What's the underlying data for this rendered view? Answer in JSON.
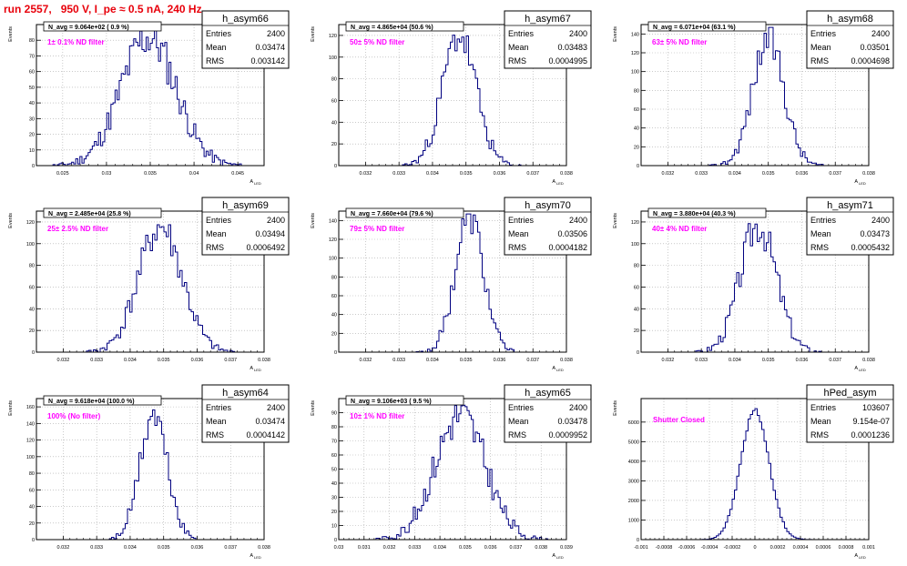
{
  "title": "run 2557,   950 V, I_pe ≈ 0.5 nA, 240 Hz",
  "colors": {
    "title": "#e8000b",
    "annotation": "#ff00ff",
    "histogram": "#000080",
    "grid": "#aaaaaa",
    "frame": "#000000"
  },
  "stats_labels": {
    "entries": "Entries",
    "mean": "Mean",
    "rms": "RMS"
  },
  "axis": {
    "ylabel": "Events",
    "xlabel": "A",
    "xlabel_sub": "LED"
  },
  "chart_data": [
    {
      "type": "histogram",
      "name": "h_asym66",
      "navg": "N_avg = 9.064e+02 ( 0.9 %)",
      "note": "1± 0.1% ND filter",
      "entries": "2400",
      "mean": "0.03474",
      "rms": "0.003142",
      "xlim": [
        0.022,
        0.048
      ],
      "ylim": [
        0,
        90
      ],
      "xticks": [
        0.025,
        0.03,
        0.035,
        0.04,
        0.045
      ],
      "xtick_labels": [
        "0.025",
        "0.03",
        "0.035",
        "0.04",
        "0.045"
      ],
      "yticks": [
        0,
        10,
        20,
        30,
        40,
        50,
        60,
        70,
        80
      ],
      "ytick_labels": [
        "0",
        "10",
        "20",
        "30",
        "40",
        "50",
        "60",
        "70",
        "80"
      ],
      "peak_x": 0.0348,
      "sigma": 0.00314,
      "peak_y": 82,
      "nbins": 110,
      "seed": 11
    },
    {
      "type": "histogram",
      "name": "h_asym67",
      "navg": "N_avg = 4.865e+04 (50.6 %)",
      "note": "50± 5% ND filter",
      "entries": "2400",
      "mean": "0.03483",
      "rms": "0.0004995",
      "xlim": [
        0.0312,
        0.038
      ],
      "ylim": [
        0,
        130
      ],
      "xticks": [
        0.032,
        0.033,
        0.034,
        0.035,
        0.036,
        0.037,
        0.038
      ],
      "xtick_labels": [
        "0.032",
        "0.033",
        "0.034",
        "0.035",
        "0.036",
        "0.037",
        "0.038"
      ],
      "yticks": [
        0,
        20,
        40,
        60,
        80,
        100,
        120
      ],
      "ytick_labels": [
        "0",
        "20",
        "40",
        "60",
        "80",
        "100",
        "120"
      ],
      "peak_x": 0.0348,
      "sigma": 0.0005,
      "peak_y": 120,
      "nbins": 100,
      "seed": 23
    },
    {
      "type": "histogram",
      "name": "h_asym68",
      "navg": "N_avg = 6.071e+04 (63.1 %)",
      "note": "63± 5% ND filter",
      "entries": "2400",
      "mean": "0.03501",
      "rms": "0.0004698",
      "xlim": [
        0.0312,
        0.038
      ],
      "ylim": [
        0,
        150
      ],
      "xticks": [
        0.032,
        0.033,
        0.034,
        0.035,
        0.036,
        0.037,
        0.038
      ],
      "xtick_labels": [
        "0.032",
        "0.033",
        "0.034",
        "0.035",
        "0.036",
        "0.037",
        "0.038"
      ],
      "yticks": [
        0,
        20,
        40,
        60,
        80,
        100,
        120,
        140
      ],
      "ytick_labels": [
        "0",
        "20",
        "40",
        "60",
        "80",
        "100",
        "120",
        "140"
      ],
      "peak_x": 0.035,
      "sigma": 0.00047,
      "peak_y": 135,
      "nbins": 100,
      "seed": 37
    },
    {
      "type": "histogram",
      "name": "h_asym69",
      "navg": "N_avg = 2.485e+04 (25.8 %)",
      "note": "25± 2.5% ND filter",
      "entries": "2400",
      "mean": "0.03494",
      "rms": "0.0006492",
      "xlim": [
        0.0312,
        0.038
      ],
      "ylim": [
        0,
        130
      ],
      "xticks": [
        0.032,
        0.033,
        0.034,
        0.035,
        0.036,
        0.037,
        0.038
      ],
      "xtick_labels": [
        "0.032",
        "0.033",
        "0.034",
        "0.035",
        "0.036",
        "0.037",
        "0.038"
      ],
      "yticks": [
        0,
        20,
        40,
        60,
        80,
        100,
        120
      ],
      "ytick_labels": [
        "0",
        "20",
        "40",
        "60",
        "80",
        "100",
        "120"
      ],
      "peak_x": 0.0349,
      "sigma": 0.00065,
      "peak_y": 115,
      "nbins": 100,
      "seed": 41
    },
    {
      "type": "histogram",
      "name": "h_asym70",
      "navg": "N_avg = 7.660e+04 (79.6 %)",
      "note": "79± 5% ND filter",
      "entries": "2400",
      "mean": "0.03506",
      "rms": "0.0004182",
      "xlim": [
        0.0312,
        0.038
      ],
      "ylim": [
        0,
        150
      ],
      "xticks": [
        0.032,
        0.033,
        0.034,
        0.035,
        0.036,
        0.037,
        0.038
      ],
      "xtick_labels": [
        "0.032",
        "0.033",
        "0.034",
        "0.035",
        "0.036",
        "0.037",
        "0.038"
      ],
      "yticks": [
        0,
        20,
        40,
        60,
        80,
        100,
        120,
        140
      ],
      "ytick_labels": [
        "0",
        "20",
        "40",
        "60",
        "80",
        "100",
        "120",
        "140"
      ],
      "peak_x": 0.0351,
      "sigma": 0.00042,
      "peak_y": 145,
      "nbins": 100,
      "seed": 53
    },
    {
      "type": "histogram",
      "name": "h_asym71",
      "navg": "N_avg = 3.880e+04 (40.3 %)",
      "note": "40± 4% ND filter",
      "entries": "2400",
      "mean": "0.03473",
      "rms": "0.0005432",
      "xlim": [
        0.0312,
        0.038
      ],
      "ylim": [
        0,
        130
      ],
      "xticks": [
        0.032,
        0.033,
        0.034,
        0.035,
        0.036,
        0.037,
        0.038
      ],
      "xtick_labels": [
        "0.032",
        "0.033",
        "0.034",
        "0.035",
        "0.036",
        "0.037",
        "0.038"
      ],
      "yticks": [
        0,
        20,
        40,
        60,
        80,
        100,
        120
      ],
      "ytick_labels": [
        "0",
        "20",
        "40",
        "60",
        "80",
        "100",
        "120"
      ],
      "peak_x": 0.0347,
      "sigma": 0.00054,
      "peak_y": 118,
      "nbins": 100,
      "seed": 67
    },
    {
      "type": "histogram",
      "name": "h_asym64",
      "navg": "N_avg = 9.618e+04 (100.0 %)",
      "note": "100% (No filter)",
      "entries": "2400",
      "mean": "0.03474",
      "rms": "0.0004142",
      "xlim": [
        0.0312,
        0.038
      ],
      "ylim": [
        0,
        170
      ],
      "xticks": [
        0.032,
        0.033,
        0.034,
        0.035,
        0.036,
        0.037,
        0.038
      ],
      "xtick_labels": [
        "0.032",
        "0.033",
        "0.034",
        "0.035",
        "0.036",
        "0.037",
        "0.038"
      ],
      "yticks": [
        0,
        20,
        40,
        60,
        80,
        100,
        120,
        140,
        160
      ],
      "ytick_labels": [
        "0",
        "20",
        "40",
        "60",
        "80",
        "100",
        "120",
        "140",
        "160"
      ],
      "peak_x": 0.0347,
      "sigma": 0.00041,
      "peak_y": 150,
      "nbins": 100,
      "seed": 71
    },
    {
      "type": "histogram",
      "name": "h_asym65",
      "navg": "N_avg = 9.106e+03 ( 9.5 %)",
      "note": "10± 1% ND filter",
      "entries": "2400",
      "mean": "0.03478",
      "rms": "0.0009952",
      "xlim": [
        0.03,
        0.039
      ],
      "ylim": [
        0,
        100
      ],
      "xticks": [
        0.03,
        0.031,
        0.032,
        0.033,
        0.034,
        0.035,
        0.036,
        0.037,
        0.038,
        0.039
      ],
      "xtick_labels": [
        "0.03",
        "0.031",
        "0.032",
        "0.033",
        "0.034",
        "0.035",
        "0.036",
        "0.037",
        "0.038",
        "0.039"
      ],
      "yticks": [
        0,
        10,
        20,
        30,
        40,
        50,
        60,
        70,
        80,
        90
      ],
      "ytick_labels": [
        "0",
        "10",
        "20",
        "30",
        "40",
        "50",
        "60",
        "70",
        "80",
        "90"
      ],
      "peak_x": 0.0348,
      "sigma": 0.000995,
      "peak_y": 88,
      "nbins": 110,
      "seed": 83
    },
    {
      "type": "histogram",
      "name": "hPed_asym",
      "navg": "",
      "note": "Shutter Closed",
      "entries": "103607",
      "mean": "9.154e-07",
      "rms": "0.0001236",
      "xlim": [
        -0.001,
        0.001
      ],
      "ylim": [
        0,
        7200
      ],
      "xticks": [
        -0.001,
        -0.0008,
        -0.0006,
        -0.0004,
        -0.0002,
        0,
        0.0002,
        0.0004,
        0.0006,
        0.0008,
        0.001
      ],
      "xtick_labels": [
        "-0.001",
        "-0.0008",
        "-0.0006",
        "-0.0004",
        "-0.0002",
        "0",
        "0.0002",
        "0.0004",
        "0.0006",
        "0.0008",
        "0.001"
      ],
      "yticks": [
        0,
        1000,
        2000,
        3000,
        4000,
        5000,
        6000
      ],
      "ytick_labels": [
        "0",
        "1000",
        "2000",
        "3000",
        "4000",
        "5000",
        "6000"
      ],
      "peak_x": 0.0,
      "sigma": 0.000124,
      "peak_y": 6600,
      "nbins": 100,
      "seed": 97
    }
  ]
}
